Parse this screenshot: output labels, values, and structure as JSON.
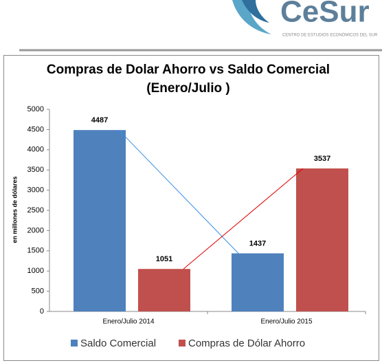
{
  "logo": {
    "name": "CeSur",
    "tagline": "CENTRO DE ESTUDIOS ECONÓMICOS DEL SUR"
  },
  "chart_data": {
    "type": "bar",
    "title": [
      "Compras de Dolar Ahorro vs Saldo Comercial",
      "(Enero/Julio )"
    ],
    "y_label": "en millones de dólares",
    "categories": [
      "Enero/Julio 2014",
      "Enero/Julio 2015"
    ],
    "series": [
      {
        "name": "Saldo Comercial",
        "color": "#4f81bd",
        "values": [
          4487,
          1437
        ]
      },
      {
        "name": "Compras de Dólar Ahorro",
        "color": "#c0504d",
        "values": [
          1051,
          3537
        ]
      }
    ],
    "ylim": [
      0,
      5000
    ],
    "yticks": [
      0,
      500,
      1000,
      1500,
      2000,
      2500,
      3000,
      3500,
      4000,
      4500,
      5000
    ],
    "grid": false,
    "legend": "bottom",
    "trend_lines": true
  }
}
